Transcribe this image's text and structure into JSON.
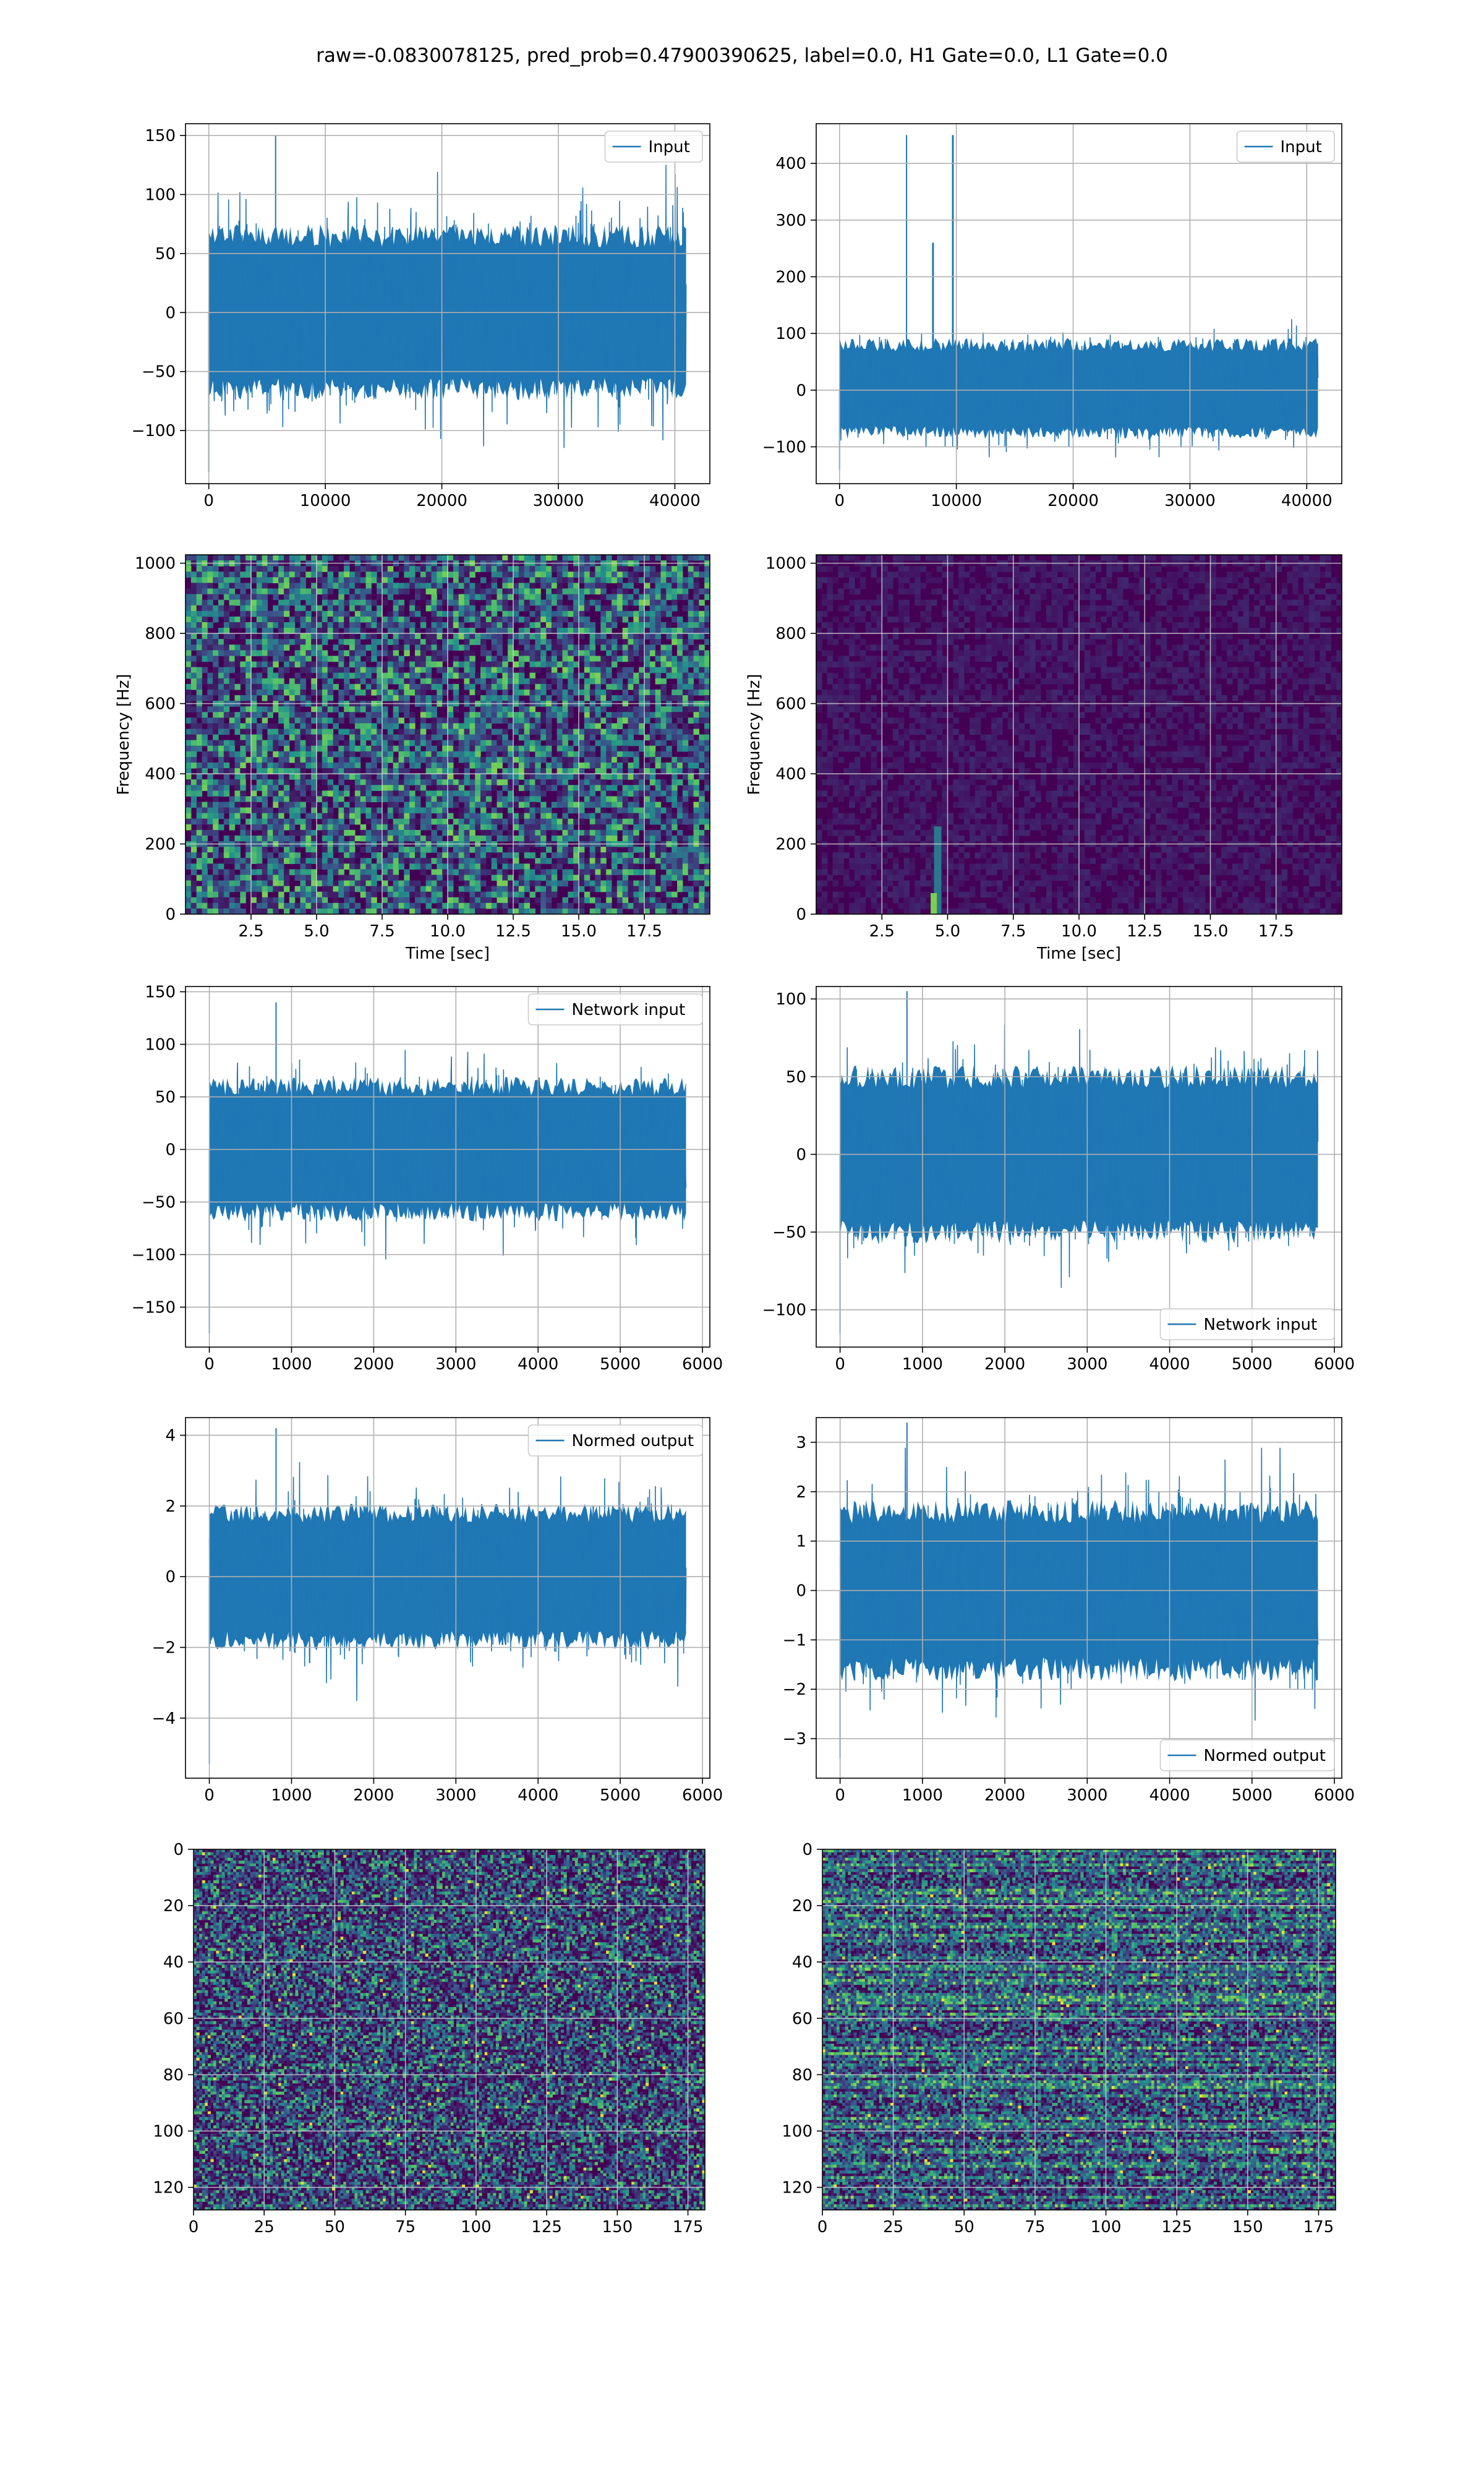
{
  "figure": {
    "title": "raw=-0.0830078125, pred_prob=0.47900390625, label=0.0, H1 Gate=0.0, L1 Gate=0.0"
  },
  "colors": {
    "line": "#1f77b4",
    "grid": "#b0b0b0",
    "viridis_low": "#440154",
    "viridis_high": "#fde725"
  },
  "chart_data": [
    {
      "id": "input-h1",
      "type": "line",
      "legend": "Input",
      "legend_loc": "upper right",
      "grid": true,
      "xlim": [
        -2000,
        43000
      ],
      "ylim": [
        -145,
        160
      ],
      "xticks": [
        0,
        10000,
        20000,
        30000,
        40000
      ],
      "yticks": [
        -100,
        -50,
        0,
        50,
        100,
        150
      ],
      "signal": {
        "n": 40960,
        "x_range": [
          0,
          40960
        ],
        "band": [
          -65,
          65
        ],
        "spread": 45,
        "extremes": [
          -135,
          150
        ]
      }
    },
    {
      "id": "input-l1",
      "type": "line",
      "legend": "Input",
      "legend_loc": "upper right",
      "grid": true,
      "xlim": [
        -2000,
        43000
      ],
      "ylim": [
        -165,
        470
      ],
      "xticks": [
        0,
        10000,
        20000,
        30000,
        40000
      ],
      "yticks": [
        -100,
        0,
        100,
        200,
        300,
        400
      ],
      "signal": {
        "n": 40960,
        "x_range": [
          0,
          40960
        ],
        "band": [
          -75,
          80
        ],
        "spread": 45,
        "extremes": [
          -140,
          450
        ],
        "spikes": [
          {
            "x": 8000,
            "y": 260
          },
          {
            "x": 9700,
            "y": 450
          }
        ]
      }
    },
    {
      "id": "spectrogram-h1",
      "type": "heatmap",
      "grid": true,
      "colormap": "viridis",
      "xlabel": "Time [sec]",
      "ylabel": "Frequency [Hz]",
      "xlim": [
        0,
        20
      ],
      "ylim": [
        0,
        1024
      ],
      "xticks": [
        2.5,
        5.0,
        7.5,
        10.0,
        12.5,
        15.0,
        17.5
      ],
      "yticks": [
        0,
        200,
        400,
        600,
        800,
        1000
      ],
      "noise": "uniform",
      "level": 0.25
    },
    {
      "id": "spectrogram-l1",
      "type": "heatmap",
      "grid": true,
      "colormap": "viridis",
      "xlabel": "Time [sec]",
      "ylabel": "Frequency [Hz]",
      "xlim": [
        0,
        20
      ],
      "ylim": [
        0,
        1024
      ],
      "xticks": [
        2.5,
        5.0,
        7.5,
        10.0,
        12.5,
        15.0,
        17.5
      ],
      "yticks": [
        0,
        200,
        400,
        600,
        800,
        1000
      ],
      "noise": "dark",
      "level": 0.03,
      "features": [
        {
          "t": 4.6,
          "f_low": 0,
          "f_high": 250
        }
      ]
    },
    {
      "id": "network-input-h1",
      "type": "line",
      "legend": "Network input",
      "legend_loc": "upper right",
      "grid": true,
      "xlim": [
        -290,
        6090
      ],
      "ylim": [
        -188,
        155
      ],
      "xticks": [
        0,
        1000,
        2000,
        3000,
        4000,
        5000,
        6000
      ],
      "yticks": [
        -150,
        -100,
        -50,
        0,
        50,
        100,
        150
      ],
      "signal": {
        "n": 5800,
        "x_range": [
          0,
          5800
        ],
        "band": [
          -60,
          60
        ],
        "spread": 38,
        "extremes": [
          -175,
          140
        ]
      }
    },
    {
      "id": "network-input-l1",
      "type": "line",
      "legend": "Network input",
      "legend_loc": "lower right",
      "grid": true,
      "xlim": [
        -290,
        6090
      ],
      "ylim": [
        -124,
        108
      ],
      "xticks": [
        0,
        1000,
        2000,
        3000,
        4000,
        5000,
        6000
      ],
      "yticks": [
        -100,
        -50,
        0,
        50,
        100
      ],
      "signal": {
        "n": 5800,
        "x_range": [
          0,
          5800
        ],
        "band": [
          -50,
          50
        ],
        "spread": 30,
        "extremes": [
          -115,
          105
        ]
      }
    },
    {
      "id": "normed-output-h1",
      "type": "line",
      "legend": "Normed output",
      "legend_loc": "upper right",
      "grid": true,
      "xlim": [
        -290,
        6090
      ],
      "ylim": [
        -5.7,
        4.5
      ],
      "xticks": [
        0,
        1000,
        2000,
        3000,
        4000,
        5000,
        6000
      ],
      "yticks": [
        -4,
        -2,
        0,
        2,
        4
      ],
      "signal": {
        "n": 5800,
        "x_range": [
          0,
          5800
        ],
        "band": [
          -1.8,
          1.8
        ],
        "spread": 1.15,
        "extremes": [
          -5.3,
          4.2
        ]
      }
    },
    {
      "id": "normed-output-l1",
      "type": "line",
      "legend": "Normed output",
      "legend_loc": "lower right",
      "grid": true,
      "xlim": [
        -290,
        6090
      ],
      "ylim": [
        -3.8,
        3.5
      ],
      "xticks": [
        0,
        1000,
        2000,
        3000,
        4000,
        5000,
        6000
      ],
      "yticks": [
        -3,
        -2,
        -1,
        0,
        1,
        2,
        3
      ],
      "signal": {
        "n": 5800,
        "x_range": [
          0,
          5800
        ],
        "band": [
          -1.6,
          1.6
        ],
        "spread": 1.0,
        "extremes": [
          -3.4,
          3.4
        ]
      }
    },
    {
      "id": "feature-map-h1",
      "type": "heatmap",
      "grid": true,
      "colormap": "viridis",
      "yaxis_inverted": true,
      "xlim": [
        0,
        181
      ],
      "ylim": [
        128,
        0
      ],
      "xticks": [
        0,
        25,
        50,
        75,
        100,
        125,
        150,
        175
      ],
      "yticks": [
        0,
        20,
        40,
        60,
        80,
        100,
        120
      ],
      "noise": "sparse",
      "level": 0.2
    },
    {
      "id": "feature-map-l1",
      "type": "heatmap",
      "grid": true,
      "colormap": "viridis",
      "yaxis_inverted": true,
      "xlim": [
        0,
        181
      ],
      "ylim": [
        128,
        0
      ],
      "xticks": [
        0,
        25,
        50,
        75,
        100,
        125,
        150,
        175
      ],
      "yticks": [
        0,
        20,
        40,
        60,
        80,
        100,
        120
      ],
      "noise": "banded",
      "level": 0.3
    }
  ]
}
